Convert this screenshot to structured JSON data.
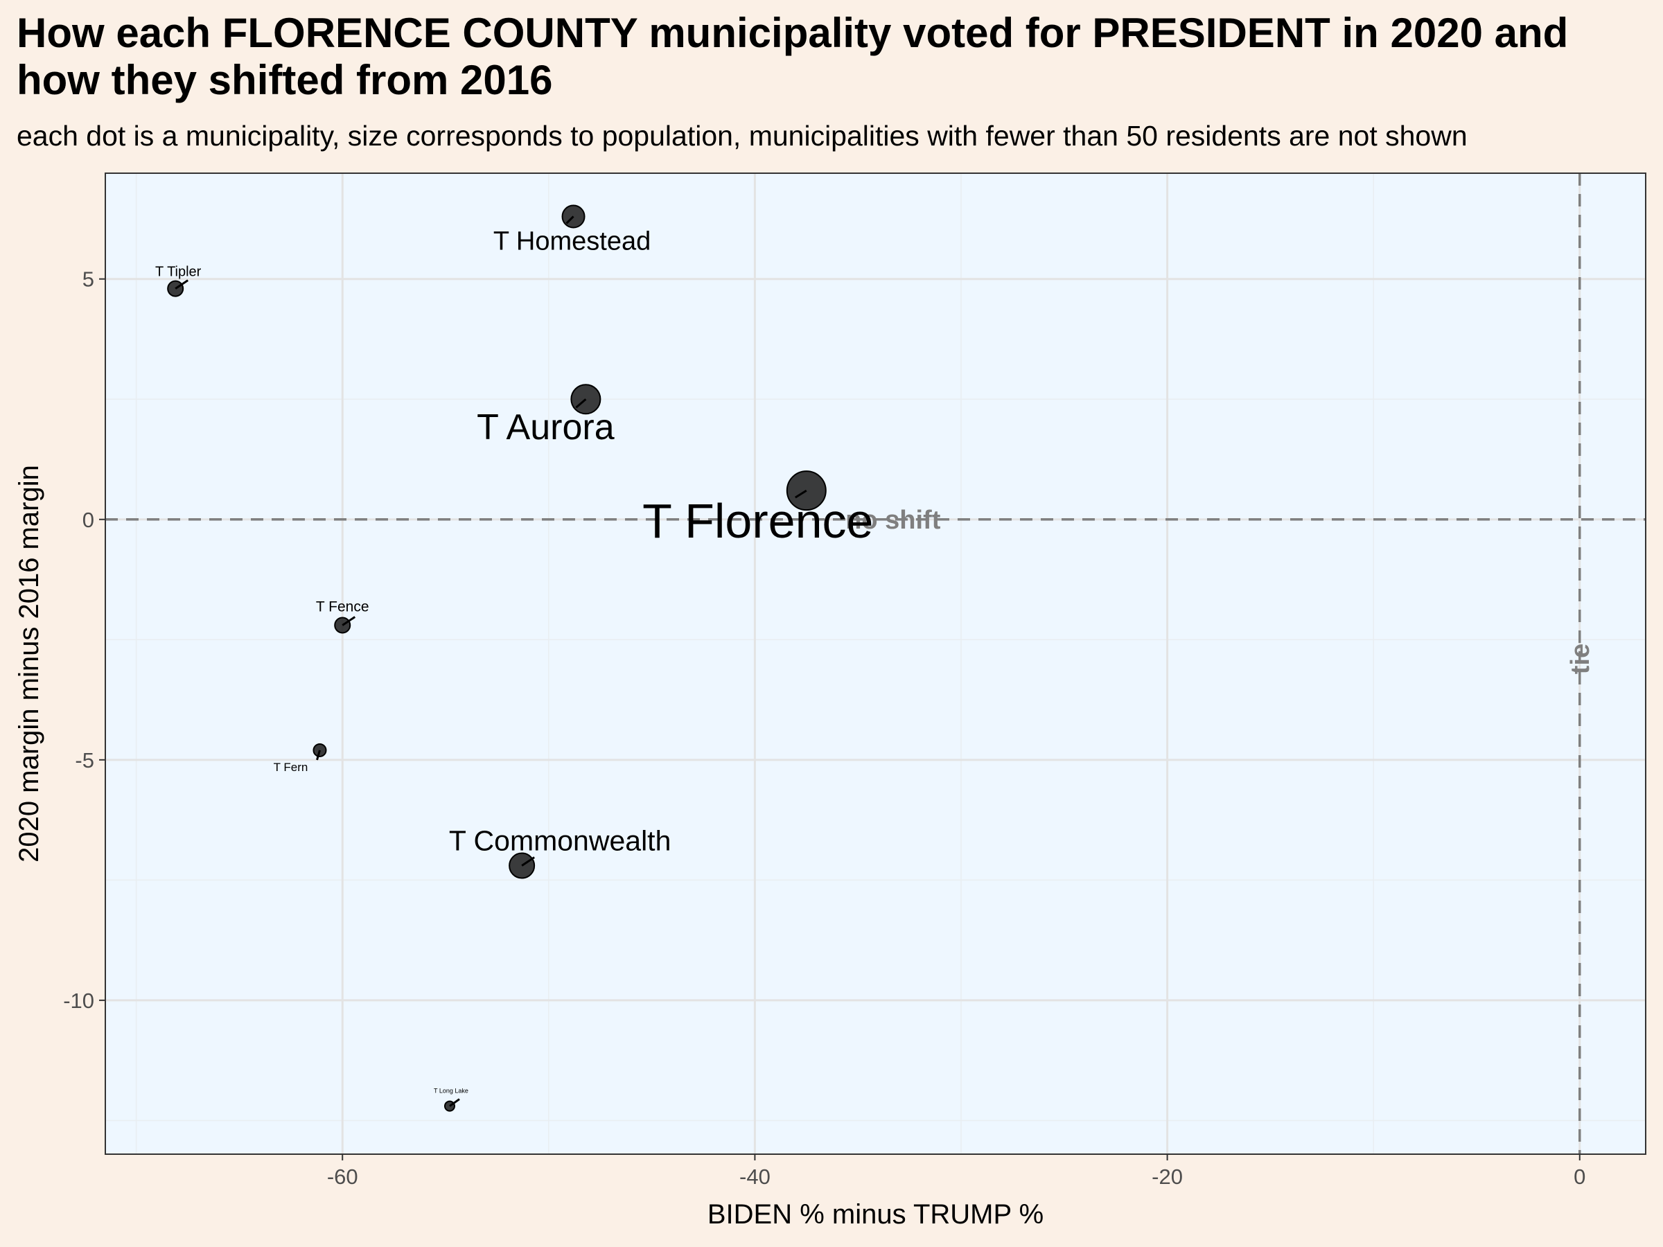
{
  "chart_data": {
    "type": "scatter",
    "title": "How each FLORENCE COUNTY municipality voted for PRESIDENT in 2020 and how they shifted from 2016",
    "subtitle": "each dot is a municipality, size corresponds to population, municipalities with fewer than 50 residents are not shown",
    "xlabel": "BIDEN % minus TRUMP %",
    "ylabel": "2020 margin minus 2016 margin",
    "xlim": [
      -71.5,
      3.2
    ],
    "ylim": [
      -13.2,
      7.2
    ],
    "x_ticks": [
      -60,
      -40,
      -20,
      0
    ],
    "x_tick_labels": [
      "-60",
      "-40",
      "-20",
      "0"
    ],
    "y_ticks": [
      5,
      0,
      -5,
      -10
    ],
    "y_tick_labels": [
      "5",
      "0",
      "-5",
      "-10"
    ],
    "grid": true,
    "reference_lines": [
      {
        "axis": "y",
        "value": 0,
        "label": "no shift"
      },
      {
        "axis": "x",
        "value": 0,
        "label": "tie"
      }
    ],
    "points": [
      {
        "name": "T Homestead",
        "x": -48.8,
        "y": 6.3,
        "population_rank": 4
      },
      {
        "name": "T Tipler",
        "x": -68.1,
        "y": 4.8,
        "population_rank": 6
      },
      {
        "name": "T Aurora",
        "x": -48.2,
        "y": 2.5,
        "population_rank": 2
      },
      {
        "name": "T Florence",
        "x": -37.5,
        "y": 0.6,
        "population_rank": 1
      },
      {
        "name": "T Fence",
        "x": -60.0,
        "y": -2.2,
        "population_rank": 7
      },
      {
        "name": "T Fern",
        "x": -61.1,
        "y": -4.8,
        "population_rank": 8
      },
      {
        "name": "T Commonwealth",
        "x": -51.3,
        "y": -7.2,
        "population_rank": 3
      },
      {
        "name": "T Long Lake",
        "x": -54.8,
        "y": -12.2,
        "population_rank": 9
      }
    ]
  },
  "colors": {
    "background": "#fbf0e6",
    "panel": "#eef7ff",
    "point": "#1a1a1a",
    "reference_line": "#7f7f7f"
  }
}
